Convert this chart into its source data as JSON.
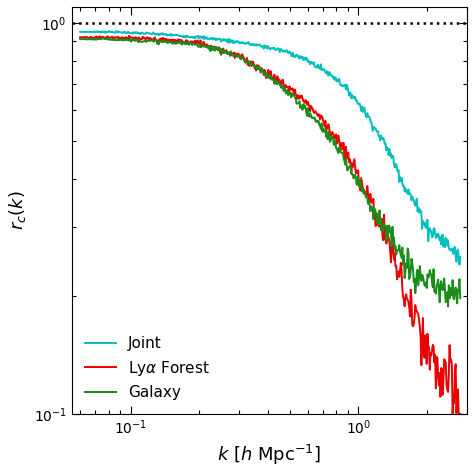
{
  "title": "",
  "xlabel": "$k$ [$h$ Mpc$^{-1}$]",
  "ylabel": "$r_c(k)$",
  "xlim": [
    0.055,
    3.0
  ],
  "ylim": [
    0.1,
    1.1
  ],
  "hline_y": 1.0,
  "legend_labels": [
    "Joint",
    "Ly$\\alpha$ Forest",
    "Galaxy"
  ],
  "colors": [
    "#00BFBF",
    "#EE0000",
    "#1A8C1A"
  ],
  "background_color": "#ffffff",
  "figsize": [
    4.74,
    4.74
  ],
  "dpi": 100
}
